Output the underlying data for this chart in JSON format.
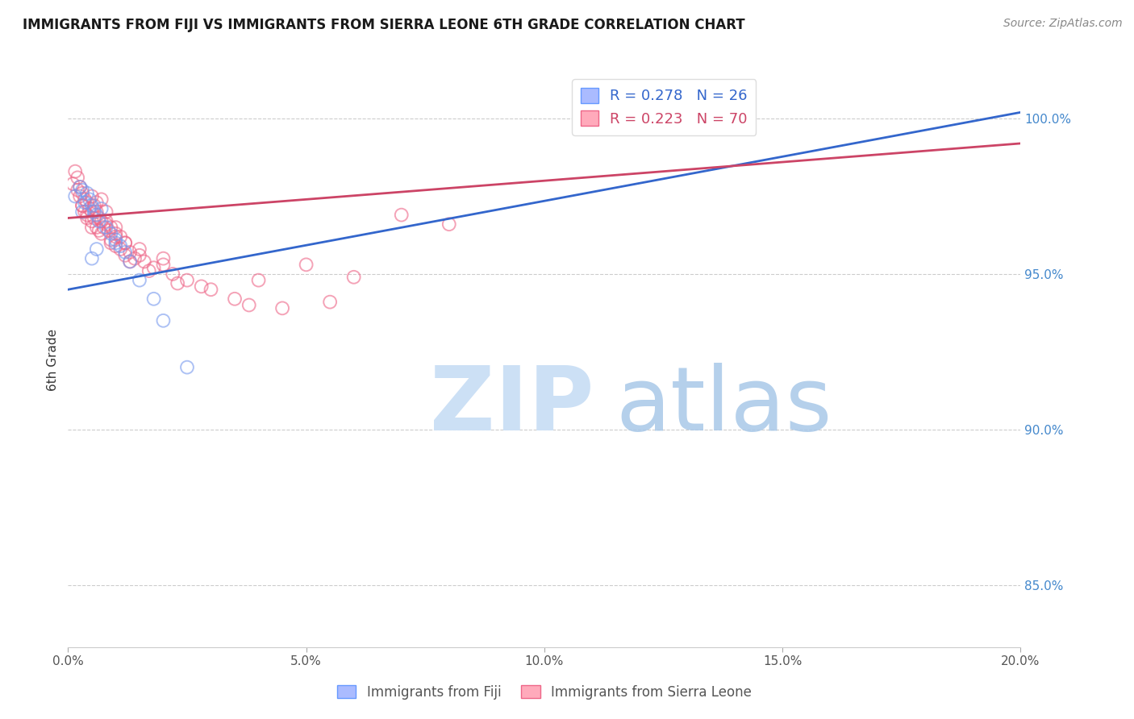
{
  "title": "IMMIGRANTS FROM FIJI VS IMMIGRANTS FROM SIERRA LEONE 6TH GRADE CORRELATION CHART",
  "source": "Source: ZipAtlas.com",
  "ylabel": "6th Grade",
  "xlim": [
    0.0,
    20.0
  ],
  "ylim": [
    83.0,
    101.5
  ],
  "yticks": [
    85.0,
    90.0,
    95.0,
    100.0
  ],
  "xticks": [
    0.0,
    5.0,
    10.0,
    15.0,
    20.0
  ],
  "fiji_color": "#7799ee",
  "sierra_color": "#ee6688",
  "fiji_line_color": "#3366cc",
  "sierra_line_color": "#cc4466",
  "fiji_R": 0.278,
  "fiji_N": 26,
  "sierra_R": 0.223,
  "sierra_N": 70,
  "fiji_scatter_x": [
    0.15,
    0.25,
    0.3,
    0.35,
    0.4,
    0.45,
    0.5,
    0.55,
    0.6,
    0.65,
    0.7,
    0.8,
    0.9,
    1.0,
    1.1,
    1.2,
    1.3,
    1.5,
    1.8,
    2.0,
    2.5,
    1.0,
    0.5,
    0.6,
    14.2,
    0.3
  ],
  "fiji_scatter_y": [
    97.5,
    97.8,
    97.7,
    97.3,
    97.6,
    97.4,
    97.2,
    97.0,
    96.9,
    96.7,
    97.1,
    96.5,
    96.3,
    96.1,
    95.9,
    95.7,
    95.4,
    94.8,
    94.2,
    93.5,
    92.0,
    96.0,
    95.5,
    95.8,
    100.4,
    97.0
  ],
  "sierra_scatter_x": [
    0.1,
    0.15,
    0.2,
    0.25,
    0.25,
    0.3,
    0.3,
    0.35,
    0.35,
    0.4,
    0.4,
    0.45,
    0.5,
    0.5,
    0.5,
    0.55,
    0.55,
    0.6,
    0.6,
    0.65,
    0.65,
    0.7,
    0.7,
    0.75,
    0.8,
    0.8,
    0.85,
    0.9,
    0.9,
    1.0,
    1.0,
    1.0,
    1.1,
    1.1,
    1.2,
    1.2,
    1.3,
    1.4,
    1.5,
    1.6,
    1.8,
    2.0,
    2.2,
    2.5,
    3.0,
    3.5,
    4.0,
    4.5,
    5.0,
    5.5,
    6.0,
    7.0,
    8.0,
    0.3,
    0.4,
    0.6,
    0.7,
    0.8,
    1.0,
    1.2,
    1.5,
    2.0,
    2.8,
    3.8,
    0.2,
    0.5,
    0.9,
    1.3,
    1.7,
    2.3
  ],
  "sierra_scatter_y": [
    97.9,
    98.3,
    98.1,
    97.8,
    97.5,
    97.6,
    97.2,
    97.4,
    97.0,
    97.3,
    96.9,
    97.1,
    97.5,
    97.0,
    96.7,
    97.2,
    96.8,
    97.0,
    96.5,
    96.8,
    96.4,
    96.7,
    96.3,
    96.5,
    97.0,
    96.6,
    96.4,
    96.5,
    96.1,
    96.5,
    96.2,
    95.9,
    96.2,
    95.8,
    96.0,
    95.6,
    95.7,
    95.5,
    95.8,
    95.4,
    95.2,
    95.5,
    95.0,
    94.8,
    94.5,
    94.2,
    94.8,
    93.9,
    95.3,
    94.1,
    94.9,
    96.9,
    96.6,
    97.2,
    96.8,
    97.3,
    97.4,
    96.7,
    96.3,
    96.0,
    95.6,
    95.3,
    94.6,
    94.0,
    97.7,
    96.5,
    96.0,
    95.4,
    95.1,
    94.7
  ],
  "fiji_line_x": [
    0.0,
    20.0
  ],
  "fiji_line_y": [
    94.5,
    100.2
  ],
  "sierra_line_x": [
    0.0,
    20.0
  ],
  "sierra_line_y": [
    96.8,
    99.2
  ],
  "legend_fiji_label": "R = 0.278   N = 26",
  "legend_sierra_label": "R = 0.223   N = 70",
  "bottom_legend_fiji": "Immigrants from Fiji",
  "bottom_legend_sierra": "Immigrants from Sierra Leone",
  "title_fontsize": 12,
  "tick_fontsize": 11,
  "source_fontsize": 10,
  "ylabel_fontsize": 11,
  "legend_fontsize": 13
}
